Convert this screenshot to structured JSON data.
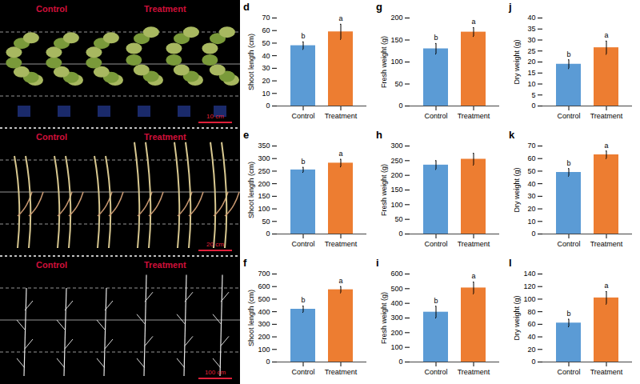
{
  "photos": [
    {
      "labels": [
        "Control",
        "Treatment"
      ],
      "scale_bar": "10 cm"
    },
    {
      "labels": [
        "Control",
        "Treatment"
      ],
      "scale_bar": "20 cm"
    },
    {
      "labels": [
        "Control",
        "Treatment"
      ],
      "scale_bar": "100 cm"
    }
  ],
  "chart_data": [
    {
      "panel": "d",
      "type": "bar",
      "y_label": "Shoot length (cm)",
      "categories": [
        "Control",
        "Treatment"
      ],
      "values": [
        48,
        59
      ],
      "errors": [
        3,
        6
      ],
      "annotations": [
        "b",
        "a"
      ],
      "colors": [
        "#5b9bd5",
        "#ed7d31"
      ],
      "ylim": [
        0,
        70
      ],
      "yticks": [
        0,
        10,
        20,
        30,
        40,
        50,
        60,
        70
      ],
      "grid": false
    },
    {
      "panel": "g",
      "type": "bar",
      "y_label": "Fresh weight (g)",
      "categories": [
        "Control",
        "Treatment"
      ],
      "values": [
        130,
        168
      ],
      "errors": [
        12,
        10
      ],
      "annotations": [
        "b",
        "a"
      ],
      "colors": [
        "#5b9bd5",
        "#ed7d31"
      ],
      "ylim": [
        0,
        200
      ],
      "yticks": [
        0,
        50,
        100,
        150,
        200
      ],
      "grid": false
    },
    {
      "panel": "j",
      "type": "bar",
      "y_label": "Dry weight (g)",
      "categories": [
        "Control",
        "Treatment"
      ],
      "values": [
        19,
        26.5
      ],
      "errors": [
        2,
        3
      ],
      "annotations": [
        "b",
        "a"
      ],
      "colors": [
        "#5b9bd5",
        "#ed7d31"
      ],
      "ylim": [
        0,
        40
      ],
      "yticks": [
        0,
        5,
        10,
        15,
        20,
        25,
        30,
        35,
        40
      ],
      "grid": false
    },
    {
      "panel": "e",
      "type": "bar",
      "y_label": "Shoot length (cm)",
      "categories": [
        "Control",
        "Treatment"
      ],
      "values": [
        255,
        282
      ],
      "errors": [
        10,
        15
      ],
      "annotations": [
        "b",
        "a"
      ],
      "colors": [
        "#5b9bd5",
        "#ed7d31"
      ],
      "ylim": [
        0,
        350
      ],
      "yticks": [
        0,
        50,
        100,
        150,
        200,
        250,
        300,
        350
      ],
      "grid": false
    },
    {
      "panel": "h",
      "type": "bar",
      "y_label": "Fresh weight (g)",
      "categories": [
        "Control",
        "Treatment"
      ],
      "values": [
        235,
        255
      ],
      "errors": [
        15,
        20
      ],
      "colors": [
        "#5b9bd5",
        "#ed7d31"
      ],
      "ylim": [
        0,
        300
      ],
      "yticks": [
        0,
        50,
        100,
        150,
        200,
        250,
        300
      ],
      "grid": false
    },
    {
      "panel": "k",
      "type": "bar",
      "y_label": "Dry weight (g)",
      "categories": [
        "Control",
        "Treatment"
      ],
      "values": [
        49,
        63
      ],
      "errors": [
        3,
        3
      ],
      "annotations": [
        "b",
        "a"
      ],
      "colors": [
        "#5b9bd5",
        "#ed7d31"
      ],
      "ylim": [
        0,
        70
      ],
      "yticks": [
        0,
        10,
        20,
        30,
        40,
        50,
        60,
        70
      ],
      "grid": false
    },
    {
      "panel": "f",
      "type": "bar",
      "y_label": "Shoot length (cm)",
      "categories": [
        "Control",
        "Treatment"
      ],
      "values": [
        420,
        575
      ],
      "errors": [
        25,
        25
      ],
      "annotations": [
        "b",
        "a"
      ],
      "colors": [
        "#5b9bd5",
        "#ed7d31"
      ],
      "ylim": [
        0,
        700
      ],
      "yticks": [
        0,
        100,
        200,
        300,
        400,
        500,
        600,
        700
      ],
      "grid": false
    },
    {
      "panel": "i",
      "type": "bar",
      "y_label": "Fresh weight (g)",
      "categories": [
        "Control",
        "Treatment"
      ],
      "values": [
        340,
        505
      ],
      "errors": [
        40,
        40
      ],
      "annotations": [
        "b",
        "a"
      ],
      "colors": [
        "#5b9bd5",
        "#ed7d31"
      ],
      "ylim": [
        0,
        600
      ],
      "yticks": [
        0,
        100,
        200,
        300,
        400,
        500,
        600
      ],
      "grid": false
    },
    {
      "panel": "l",
      "type": "bar",
      "y_label": "Dry weight (g)",
      "categories": [
        "Control",
        "Treatment"
      ],
      "values": [
        62,
        102
      ],
      "errors": [
        6,
        10
      ],
      "annotations": [
        "b",
        "a"
      ],
      "colors": [
        "#5b9bd5",
        "#ed7d31"
      ],
      "ylim": [
        0,
        140
      ],
      "yticks": [
        0,
        20,
        40,
        60,
        80,
        100,
        120,
        140
      ],
      "grid": false
    }
  ]
}
